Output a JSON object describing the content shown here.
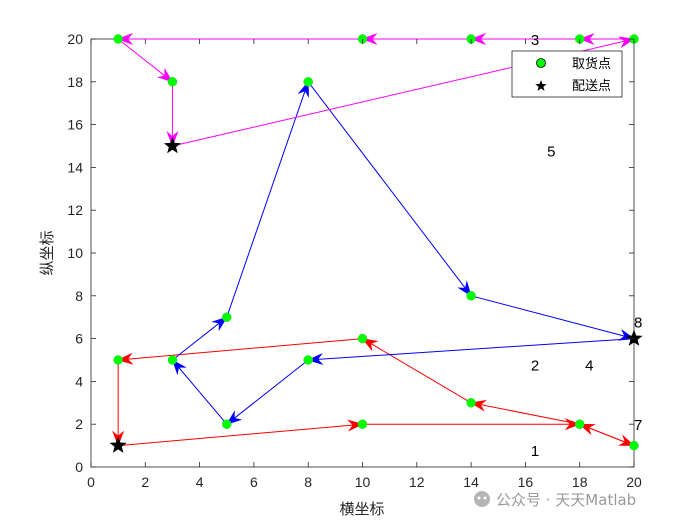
{
  "chart_data": {
    "type": "line",
    "xlabel": "横坐标",
    "ylabel": "纵坐标",
    "xlim": [
      0,
      20
    ],
    "ylim": [
      0,
      20
    ],
    "xticks": [
      0,
      2,
      4,
      6,
      8,
      10,
      12,
      14,
      16,
      18,
      20
    ],
    "yticks": [
      0,
      2,
      4,
      6,
      8,
      10,
      12,
      14,
      16,
      18,
      20
    ],
    "grid": false,
    "legend_position": "top-right",
    "legend": [
      {
        "label": "取货点",
        "marker": "circle",
        "color": "#00ff00"
      },
      {
        "label": "配送点",
        "marker": "star",
        "color": "#000000"
      }
    ],
    "pickup_points": [
      [
        1,
        20
      ],
      [
        10,
        20
      ],
      [
        14,
        20
      ],
      [
        18,
        20
      ],
      [
        20,
        20
      ],
      [
        3,
        18
      ],
      [
        8,
        18
      ],
      [
        5,
        7
      ],
      [
        14,
        8
      ],
      [
        1,
        5
      ],
      [
        3,
        5
      ],
      [
        8,
        5
      ],
      [
        10,
        6
      ],
      [
        5,
        2
      ],
      [
        10,
        2
      ],
      [
        14,
        3
      ],
      [
        18,
        2
      ],
      [
        20,
        1
      ]
    ],
    "delivery_points": [
      [
        3,
        15
      ],
      [
        1,
        1
      ],
      [
        20,
        6
      ]
    ],
    "routes": [
      {
        "color": "#ff0000",
        "points": [
          [
            1,
            1
          ],
          [
            10,
            2
          ],
          [
            18,
            2
          ],
          [
            20,
            1
          ],
          [
            18,
            2
          ],
          [
            14,
            3
          ],
          [
            10,
            6
          ],
          [
            1,
            5
          ],
          [
            1,
            1
          ]
        ]
      },
      {
        "color": "#0000ff",
        "points": [
          [
            20,
            6
          ],
          [
            8,
            5
          ],
          [
            5,
            2
          ],
          [
            3,
            5
          ],
          [
            5,
            7
          ],
          [
            8,
            18
          ],
          [
            14,
            8
          ],
          [
            20,
            6
          ]
        ]
      },
      {
        "color": "#ff00ff",
        "points": [
          [
            3,
            15
          ],
          [
            20,
            20
          ],
          [
            18,
            20
          ],
          [
            14,
            20
          ],
          [
            10,
            20
          ],
          [
            1,
            20
          ],
          [
            3,
            18
          ],
          [
            3,
            15
          ]
        ]
      }
    ],
    "annotations": [
      {
        "text": "3",
        "x": 16.2,
        "y": 20
      },
      {
        "text": "5",
        "x": 16.8,
        "y": 14.8
      },
      {
        "text": "8",
        "x": 20,
        "y": 6.8
      },
      {
        "text": "2",
        "x": 16.2,
        "y": 4.8
      },
      {
        "text": "4",
        "x": 18.2,
        "y": 4.8
      },
      {
        "text": "7",
        "x": 20,
        "y": 2
      },
      {
        "text": "1",
        "x": 16.2,
        "y": 0.8
      }
    ]
  },
  "watermark": {
    "text": "公众号 · 天天Matlab"
  }
}
